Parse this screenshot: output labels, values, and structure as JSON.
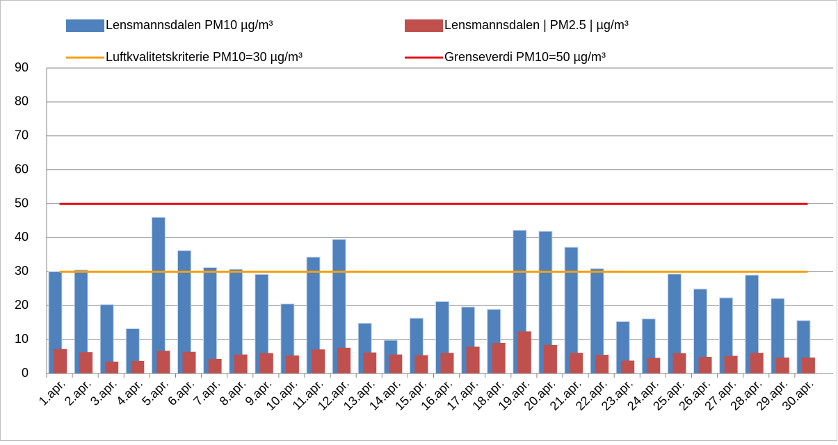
{
  "chart_data": {
    "type": "bar",
    "categories": [
      "1.apr.",
      "2.apr.",
      "3.apr.",
      "4.apr.",
      "5.apr.",
      "6.apr.",
      "7.apr.",
      "8.apr.",
      "9.apr.",
      "10.apr.",
      "11.apr.",
      "12.apr.",
      "13.apr.",
      "14.apr.",
      "15.apr.",
      "16.apr.",
      "17.apr.",
      "18.apr.",
      "19.apr.",
      "20.apr.",
      "21.apr.",
      "22.apr.",
      "23.apr.",
      "24.apr.",
      "25.apr.",
      "26.apr.",
      "27.apr.",
      "28.apr.",
      "29.apr.",
      "30.apr."
    ],
    "series": [
      {
        "name": "Lensmannsdalen  PM10  µg/m³",
        "kind": "bar",
        "color": "#4f81bd",
        "values": [
          30,
          30.5,
          20.3,
          13.2,
          46,
          36.2,
          31.2,
          30.7,
          29.2,
          20.5,
          34.3,
          39.5,
          14.8,
          9.8,
          16.3,
          21.2,
          19.6,
          18.9,
          42.2,
          41.9,
          37.2,
          30.9,
          15.3,
          16.1,
          29.3,
          24.9,
          22.3,
          29,
          22.1,
          15.6
        ]
      },
      {
        "name": "Lensmannsdalen | PM2.5 | µg/m³",
        "kind": "bar",
        "color": "#c0504d",
        "values": [
          7.2,
          6.3,
          3.5,
          3.7,
          6.7,
          6.4,
          4.3,
          5.6,
          6,
          5.3,
          7.1,
          7.6,
          6.2,
          5.6,
          5.4,
          6.1,
          7.9,
          9,
          12.4,
          8.4,
          6.1,
          5.5,
          3.8,
          4.6,
          6,
          4.9,
          5.2,
          6.1,
          4.7,
          4.7
        ]
      },
      {
        "name": "Luftkvalitetskriterie PM10=30 µg/m³",
        "kind": "line",
        "color": "#f5a00f",
        "values": [
          30,
          30,
          30,
          30,
          30,
          30,
          30,
          30,
          30,
          30,
          30,
          30,
          30,
          30,
          30,
          30,
          30,
          30,
          30,
          30,
          30,
          30,
          30,
          30,
          30,
          30,
          30,
          30,
          30,
          30
        ]
      },
      {
        "name": "Grenseverdi PM10=50 µg/m³",
        "kind": "line",
        "color": "#e8101a",
        "values": [
          50,
          50,
          50,
          50,
          50,
          50,
          50,
          50,
          50,
          50,
          50,
          50,
          50,
          50,
          50,
          50,
          50,
          50,
          50,
          50,
          50,
          50,
          50,
          50,
          50,
          50,
          50,
          50,
          50,
          50
        ]
      }
    ],
    "ylim": [
      0,
      90
    ],
    "yticks": [
      0,
      10,
      20,
      30,
      40,
      50,
      60,
      70,
      80,
      90
    ],
    "grid": true
  }
}
